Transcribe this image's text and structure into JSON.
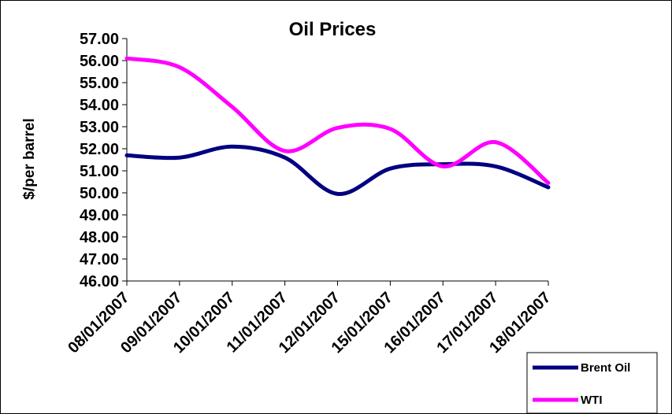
{
  "chart_data": {
    "type": "line",
    "title": "Oil Prices",
    "ylabel": "$/per barrel",
    "xlabel": "",
    "categories": [
      "08/01/2007",
      "09/01/2007",
      "10/01/2007",
      "11/01/2007",
      "12/01/2007",
      "15/01/2007",
      "16/01/2007",
      "17/01/2007",
      "18/01/2007"
    ],
    "ylim": [
      46,
      57
    ],
    "yticks": [
      "46.00",
      "47.00",
      "48.00",
      "49.00",
      "50.00",
      "51.00",
      "52.00",
      "53.00",
      "54.00",
      "55.00",
      "56.00",
      "57.00"
    ],
    "grid": false,
    "legend_position": "bottom-right",
    "series": [
      {
        "name": "Brent Oil",
        "color": "#000080",
        "values": [
          51.7,
          51.6,
          52.1,
          51.6,
          49.95,
          51.1,
          51.3,
          51.2,
          50.25
        ]
      },
      {
        "name": "WTI",
        "color": "#FF00FF",
        "values": [
          56.1,
          55.7,
          53.9,
          51.9,
          52.95,
          52.9,
          51.2,
          52.3,
          50.45
        ]
      }
    ]
  }
}
